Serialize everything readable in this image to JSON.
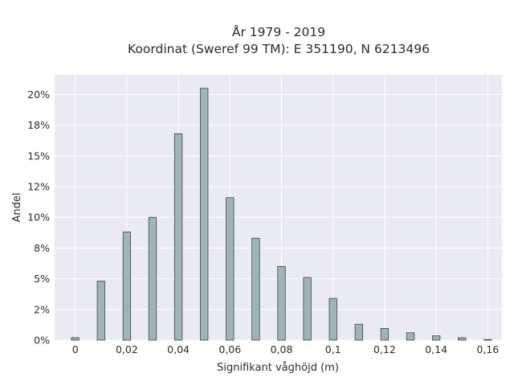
{
  "chart_data": {
    "type": "bar",
    "title_line1": "År 1979 - 2019",
    "title_line2": "Koordinat (Sweref 99 TM): E 351190, N 6213496",
    "xlabel": "Signifikant våghöjd (m)",
    "ylabel": "Andel",
    "x": [
      0,
      0.01,
      0.02,
      0.03,
      0.04,
      0.05,
      0.06,
      0.07,
      0.08,
      0.09,
      0.1,
      0.11,
      0.12,
      0.13,
      0.14,
      0.15,
      0.16
    ],
    "values": [
      0.2,
      4.8,
      8.8,
      10.0,
      16.8,
      20.5,
      11.6,
      8.3,
      6.0,
      5.1,
      3.4,
      1.3,
      0.95,
      0.6,
      0.35,
      0.2,
      0.05
    ],
    "xlim": [
      -0.008,
      0.1655
    ],
    "ylim": [
      0,
      21.6
    ],
    "xticks": [
      0,
      0.02,
      0.04,
      0.06,
      0.08,
      0.1,
      0.12,
      0.14,
      0.16
    ],
    "xtick_labels": [
      "0",
      "0,02",
      "0,04",
      "0,06",
      "0,08",
      "0,1",
      "0,12",
      "0,14",
      "0,16"
    ],
    "yticks": [
      0,
      2.5,
      5,
      7.5,
      10,
      12.5,
      15,
      17.5,
      20
    ],
    "ytick_labels": [
      "0%",
      "2%",
      "5%",
      "8%",
      "10%",
      "12%",
      "15%",
      "18%",
      "20%"
    ],
    "grid": true,
    "colors": {
      "bar_fill": "#9fb4b4",
      "bar_edge": "#3d4747",
      "plot_bg": "#eaeaf2"
    }
  }
}
